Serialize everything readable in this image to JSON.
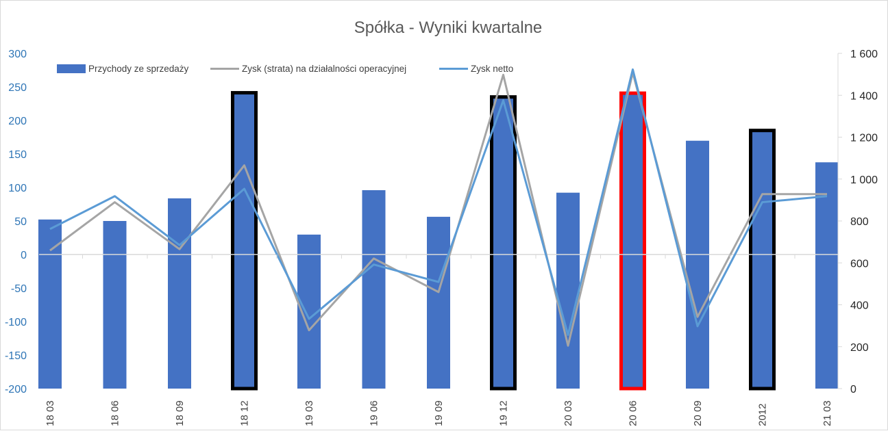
{
  "chart_data": {
    "type": "bar",
    "title": "Spółka - Wyniki kwartalne",
    "xlabel": "",
    "ylabel": "",
    "categories": [
      "18 03",
      "18 06",
      "18 09",
      "18 12",
      "19 03",
      "19 06",
      "19 09",
      "19 12",
      "20 03",
      "20 06",
      "20 09",
      "2012",
      "21 03"
    ],
    "y_left_lim": [
      -200,
      300
    ],
    "y_left_ticks": [
      "300",
      "250",
      "200",
      "150",
      "100",
      "50",
      "0",
      "-50",
      "-100",
      "-150",
      "-200"
    ],
    "y_right_lim": [
      0,
      1600
    ],
    "y_right_ticks": [
      "1 600",
      "1 400",
      "1 200",
      "1 000",
      "800",
      "600",
      "400",
      "200",
      "0"
    ],
    "legend_position": "top-left",
    "grid": false,
    "series": [
      {
        "name": "Przychody ze sprzedaży",
        "type": "bar",
        "axis": "right",
        "color": "#4472c4",
        "values": [
          807,
          800,
          908,
          1412,
          735,
          947,
          820,
          1392,
          935,
          1410,
          1183,
          1232,
          1080
        ]
      },
      {
        "name": "Zysk (strata) na działalności operacyjnej",
        "type": "line",
        "axis": "left",
        "color": "#a5a5a5",
        "values": [
          6,
          78,
          8,
          133,
          -113,
          -6,
          -56,
          268,
          -136,
          271,
          -93,
          90,
          90
        ]
      },
      {
        "name": "Zysk netto",
        "type": "line",
        "axis": "left",
        "color": "#5b9bd5",
        "values": [
          38,
          87,
          14,
          98,
          -96,
          -15,
          -41,
          230,
          -120,
          276,
          -107,
          78,
          87
        ]
      }
    ],
    "highlighted_bars": [
      {
        "category": "18 12",
        "outline": "#000000"
      },
      {
        "category": "19 12",
        "outline": "#000000"
      },
      {
        "category": "20 06",
        "outline": "#ff0000"
      },
      {
        "category": "2012",
        "outline": "#000000"
      }
    ]
  }
}
